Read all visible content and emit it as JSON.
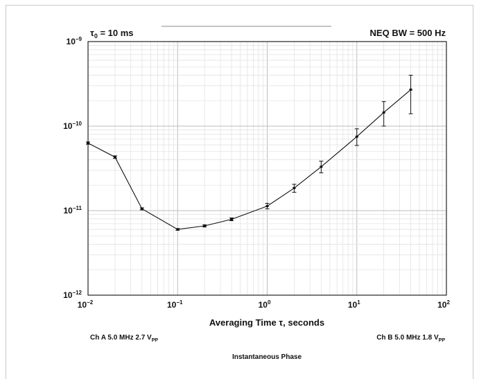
{
  "chart_data": {
    "type": "line",
    "x_scale": "log",
    "y_scale": "log",
    "xlim": [
      0.01,
      100
    ],
    "ylim": [
      1e-12,
      1e-09
    ],
    "grid": true,
    "xlabel": "Averaging Time τ, seconds",
    "x_ticks": [
      {
        "value": 0.01,
        "base": "10",
        "exp": "−2"
      },
      {
        "value": 0.1,
        "base": "10",
        "exp": "−1"
      },
      {
        "value": 1,
        "base": "10",
        "exp": "0"
      },
      {
        "value": 10,
        "base": "10",
        "exp": "1"
      },
      {
        "value": 100,
        "base": "10",
        "exp": "2"
      }
    ],
    "y_ticks": [
      {
        "value": 1e-12,
        "base": "10",
        "exp": "−12"
      },
      {
        "value": 1e-11,
        "base": "10",
        "exp": "−11"
      },
      {
        "value": 1e-10,
        "base": "10",
        "exp": "−10"
      },
      {
        "value": 1e-09,
        "base": "10",
        "exp": "−9"
      }
    ],
    "annotations": {
      "tau0_symbol": "τ",
      "tau0_sub": "0",
      "tau0_rest": " = 10 ms",
      "neq_bw": "NEQ BW = 500 Hz",
      "ch_a_main": "Ch A 5.0 MHz 2.7 V",
      "ch_a_sub": "PP",
      "ch_b_main": "Ch B 5.0 MHz 1.8 V",
      "ch_b_sub": "PP",
      "footer": "Instantaneous Phase"
    },
    "series": [
      {
        "x": [
          0.01,
          0.02,
          0.04,
          0.1,
          0.2,
          0.4,
          1,
          2,
          4,
          10,
          20,
          40
        ],
        "y": [
          6.3e-11,
          4.3e-11,
          1.05e-11,
          6e-12,
          6.6e-12,
          7.9e-12,
          1.13e-11,
          1.85e-11,
          3.3e-11,
          7.5e-11,
          1.45e-10,
          2.7e-10
        ],
        "y_err_low": [
          6.1e-11,
          4.15e-11,
          1.02e-11,
          5.85e-12,
          6.4e-12,
          7.6e-12,
          1.05e-11,
          1.65e-11,
          2.8e-11,
          5.9e-11,
          1e-10,
          1.4e-10
        ],
        "y_err_high": [
          6.5e-11,
          4.45e-11,
          1.08e-11,
          6.15e-12,
          6.8e-12,
          8.2e-12,
          1.22e-11,
          2.05e-11,
          3.85e-11,
          9.3e-11,
          1.95e-10,
          4e-10
        ]
      }
    ]
  }
}
